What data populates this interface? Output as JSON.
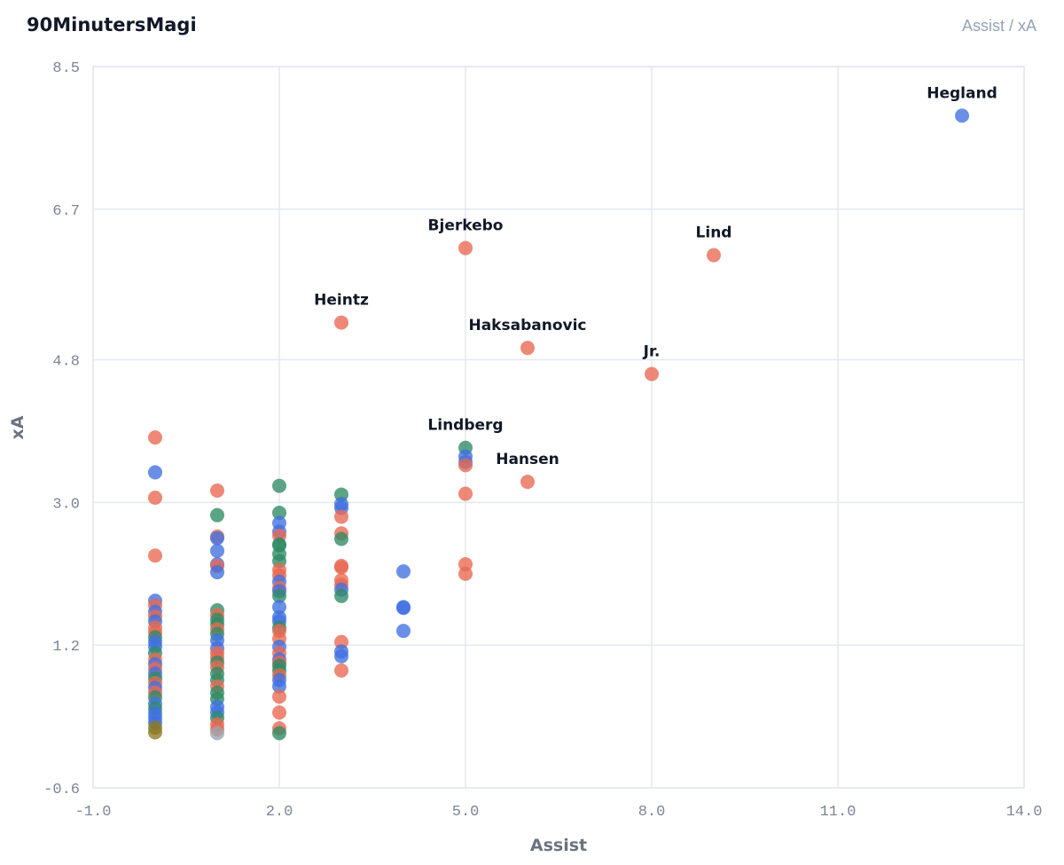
{
  "header": {
    "brand": "90MinutersMagi",
    "subtitle": "Assist / xA"
  },
  "colors": {
    "orange": "#e8684f",
    "green": "#2e8b64",
    "blue": "#3f6fe0",
    "olive": "#8a7a24",
    "grid": "#e5e7f0",
    "text": "#111827",
    "tick": "#7c8595"
  },
  "chart_data": {
    "type": "scatter",
    "xlabel": "Assist",
    "ylabel": "xA",
    "xlim": [
      -1.0,
      14.0
    ],
    "ylim": [
      -0.6,
      8.5
    ],
    "xticks": [
      "-1.0",
      "2.0",
      "5.0",
      "8.0",
      "11.0",
      "14.0"
    ],
    "yticks": [
      "-0.6",
      "1.2",
      "3.0",
      "4.8",
      "6.7",
      "8.5"
    ],
    "grid": true,
    "points": [
      {
        "x": 13,
        "y": 7.88,
        "c": "blue",
        "label": "Hegland"
      },
      {
        "x": 5,
        "y": 6.21,
        "c": "orange",
        "label": "Bjerkebo"
      },
      {
        "x": 9,
        "y": 6.12,
        "c": "orange",
        "label": "Lind"
      },
      {
        "x": 3,
        "y": 5.27,
        "c": "orange",
        "label": "Heintz"
      },
      {
        "x": 6,
        "y": 4.95,
        "c": "orange",
        "label": "Haksabanovic"
      },
      {
        "x": 8,
        "y": 4.62,
        "c": "orange",
        "label": "Jr."
      },
      {
        "x": 5,
        "y": 3.69,
        "c": "green",
        "label": "Lindberg"
      },
      {
        "x": 6,
        "y": 3.26,
        "c": "orange",
        "label": "Hansen"
      },
      {
        "x": 5,
        "y": 3.58,
        "c": "blue"
      },
      {
        "x": 5,
        "y": 3.51,
        "c": "blue"
      },
      {
        "x": 5,
        "y": 3.47,
        "c": "orange"
      },
      {
        "x": 5,
        "y": 3.11,
        "c": "orange"
      },
      {
        "x": 5,
        "y": 2.22,
        "c": "orange"
      },
      {
        "x": 5,
        "y": 2.1,
        "c": "orange"
      },
      {
        "x": 4,
        "y": 2.13,
        "c": "blue"
      },
      {
        "x": 4,
        "y": 1.68,
        "c": "blue"
      },
      {
        "x": 4,
        "y": 1.67,
        "c": "blue"
      },
      {
        "x": 4,
        "y": 1.38,
        "c": "blue"
      },
      {
        "x": 3,
        "y": 3.1,
        "c": "green"
      },
      {
        "x": 3,
        "y": 2.98,
        "c": "blue"
      },
      {
        "x": 3,
        "y": 2.93,
        "c": "blue"
      },
      {
        "x": 3,
        "y": 2.82,
        "c": "orange"
      },
      {
        "x": 3,
        "y": 2.61,
        "c": "orange"
      },
      {
        "x": 3,
        "y": 2.54,
        "c": "green"
      },
      {
        "x": 3,
        "y": 2.2,
        "c": "orange"
      },
      {
        "x": 3,
        "y": 2.18,
        "c": "orange"
      },
      {
        "x": 3,
        "y": 2.02,
        "c": "orange"
      },
      {
        "x": 3,
        "y": 1.96,
        "c": "orange"
      },
      {
        "x": 3,
        "y": 1.9,
        "c": "blue"
      },
      {
        "x": 3,
        "y": 1.82,
        "c": "green"
      },
      {
        "x": 3,
        "y": 1.24,
        "c": "orange"
      },
      {
        "x": 3,
        "y": 1.12,
        "c": "blue"
      },
      {
        "x": 3,
        "y": 1.06,
        "c": "blue"
      },
      {
        "x": 3,
        "y": 0.88,
        "c": "orange"
      },
      {
        "x": 2,
        "y": 3.21,
        "c": "green"
      },
      {
        "x": 2,
        "y": 2.87,
        "c": "green"
      },
      {
        "x": 2,
        "y": 2.74,
        "c": "blue"
      },
      {
        "x": 2,
        "y": 2.63,
        "c": "blue"
      },
      {
        "x": 2,
        "y": 2.58,
        "c": "orange"
      },
      {
        "x": 2,
        "y": 2.47,
        "c": "green"
      },
      {
        "x": 2,
        "y": 2.46,
        "c": "green"
      },
      {
        "x": 2,
        "y": 2.35,
        "c": "green"
      },
      {
        "x": 2,
        "y": 2.26,
        "c": "green"
      },
      {
        "x": 2,
        "y": 2.15,
        "c": "orange"
      },
      {
        "x": 2,
        "y": 2.08,
        "c": "orange"
      },
      {
        "x": 2,
        "y": 2.0,
        "c": "blue"
      },
      {
        "x": 2,
        "y": 1.92,
        "c": "orange"
      },
      {
        "x": 2,
        "y": 1.88,
        "c": "blue"
      },
      {
        "x": 2,
        "y": 1.82,
        "c": "green"
      },
      {
        "x": 2,
        "y": 1.68,
        "c": "blue"
      },
      {
        "x": 2,
        "y": 1.55,
        "c": "blue"
      },
      {
        "x": 2,
        "y": 1.5,
        "c": "blue"
      },
      {
        "x": 2,
        "y": 1.42,
        "c": "green"
      },
      {
        "x": 2,
        "y": 1.38,
        "c": "orange"
      },
      {
        "x": 2,
        "y": 1.28,
        "c": "orange"
      },
      {
        "x": 2,
        "y": 1.18,
        "c": "blue"
      },
      {
        "x": 2,
        "y": 1.1,
        "c": "orange"
      },
      {
        "x": 2,
        "y": 1.02,
        "c": "blue"
      },
      {
        "x": 2,
        "y": 0.98,
        "c": "orange"
      },
      {
        "x": 2,
        "y": 0.94,
        "c": "green"
      },
      {
        "x": 2,
        "y": 0.88,
        "c": "green"
      },
      {
        "x": 2,
        "y": 0.82,
        "c": "orange"
      },
      {
        "x": 2,
        "y": 0.76,
        "c": "blue"
      },
      {
        "x": 2,
        "y": 0.68,
        "c": "blue"
      },
      {
        "x": 2,
        "y": 0.55,
        "c": "orange"
      },
      {
        "x": 2,
        "y": 0.35,
        "c": "orange"
      },
      {
        "x": 2,
        "y": 0.15,
        "c": "orange"
      },
      {
        "x": 2,
        "y": 0.09,
        "c": "green"
      },
      {
        "x": 1,
        "y": 3.15,
        "c": "orange"
      },
      {
        "x": 1,
        "y": 2.84,
        "c": "green"
      },
      {
        "x": 1,
        "y": 2.57,
        "c": "orange"
      },
      {
        "x": 1,
        "y": 2.55,
        "c": "blue"
      },
      {
        "x": 1,
        "y": 2.39,
        "c": "blue"
      },
      {
        "x": 1,
        "y": 2.22,
        "c": "blue"
      },
      {
        "x": 1,
        "y": 2.2,
        "c": "orange"
      },
      {
        "x": 1,
        "y": 2.12,
        "c": "blue"
      },
      {
        "x": 1,
        "y": 1.64,
        "c": "green"
      },
      {
        "x": 1,
        "y": 1.58,
        "c": "orange"
      },
      {
        "x": 1,
        "y": 1.52,
        "c": "green"
      },
      {
        "x": 1,
        "y": 1.46,
        "c": "green"
      },
      {
        "x": 1,
        "y": 1.4,
        "c": "orange"
      },
      {
        "x": 1,
        "y": 1.34,
        "c": "green"
      },
      {
        "x": 1,
        "y": 1.26,
        "c": "blue"
      },
      {
        "x": 1,
        "y": 1.16,
        "c": "blue"
      },
      {
        "x": 1,
        "y": 1.1,
        "c": "orange"
      },
      {
        "x": 1,
        "y": 1.04,
        "c": "orange"
      },
      {
        "x": 1,
        "y": 0.98,
        "c": "green"
      },
      {
        "x": 1,
        "y": 0.92,
        "c": "orange"
      },
      {
        "x": 1,
        "y": 0.84,
        "c": "green"
      },
      {
        "x": 1,
        "y": 0.76,
        "c": "green"
      },
      {
        "x": 1,
        "y": 0.68,
        "c": "orange"
      },
      {
        "x": 1,
        "y": 0.6,
        "c": "green"
      },
      {
        "x": 1,
        "y": 0.52,
        "c": "green"
      },
      {
        "x": 1,
        "y": 0.42,
        "c": "blue"
      },
      {
        "x": 1,
        "y": 0.35,
        "c": "blue"
      },
      {
        "x": 1,
        "y": 0.28,
        "c": "green"
      },
      {
        "x": 1,
        "y": 0.2,
        "c": "orange"
      },
      {
        "x": 1,
        "y": 0.14,
        "c": "orange"
      },
      {
        "x": 1,
        "y": 0.09,
        "c": "grey"
      },
      {
        "x": 0,
        "y": 3.82,
        "c": "orange"
      },
      {
        "x": 0,
        "y": 3.38,
        "c": "blue"
      },
      {
        "x": 0,
        "y": 3.06,
        "c": "orange"
      },
      {
        "x": 0,
        "y": 2.33,
        "c": "orange"
      },
      {
        "x": 0,
        "y": 1.76,
        "c": "blue"
      },
      {
        "x": 0,
        "y": 1.7,
        "c": "orange"
      },
      {
        "x": 0,
        "y": 1.62,
        "c": "blue"
      },
      {
        "x": 0,
        "y": 1.56,
        "c": "orange"
      },
      {
        "x": 0,
        "y": 1.5,
        "c": "blue"
      },
      {
        "x": 0,
        "y": 1.42,
        "c": "orange"
      },
      {
        "x": 0,
        "y": 1.36,
        "c": "orange"
      },
      {
        "x": 0,
        "y": 1.3,
        "c": "green"
      },
      {
        "x": 0,
        "y": 1.24,
        "c": "blue"
      },
      {
        "x": 0,
        "y": 1.18,
        "c": "blue"
      },
      {
        "x": 0,
        "y": 1.1,
        "c": "green"
      },
      {
        "x": 0,
        "y": 1.02,
        "c": "orange"
      },
      {
        "x": 0,
        "y": 0.96,
        "c": "blue"
      },
      {
        "x": 0,
        "y": 0.9,
        "c": "orange"
      },
      {
        "x": 0,
        "y": 0.84,
        "c": "blue"
      },
      {
        "x": 0,
        "y": 0.78,
        "c": "green"
      },
      {
        "x": 0,
        "y": 0.72,
        "c": "orange"
      },
      {
        "x": 0,
        "y": 0.66,
        "c": "blue"
      },
      {
        "x": 0,
        "y": 0.6,
        "c": "orange"
      },
      {
        "x": 0,
        "y": 0.54,
        "c": "green"
      },
      {
        "x": 0,
        "y": 0.46,
        "c": "blue"
      },
      {
        "x": 0,
        "y": 0.4,
        "c": "green"
      },
      {
        "x": 0,
        "y": 0.34,
        "c": "blue"
      },
      {
        "x": 0,
        "y": 0.28,
        "c": "blue"
      },
      {
        "x": 0,
        "y": 0.22,
        "c": "blue"
      },
      {
        "x": 0,
        "y": 0.16,
        "c": "olive"
      },
      {
        "x": 0,
        "y": 0.1,
        "c": "olive"
      }
    ]
  }
}
